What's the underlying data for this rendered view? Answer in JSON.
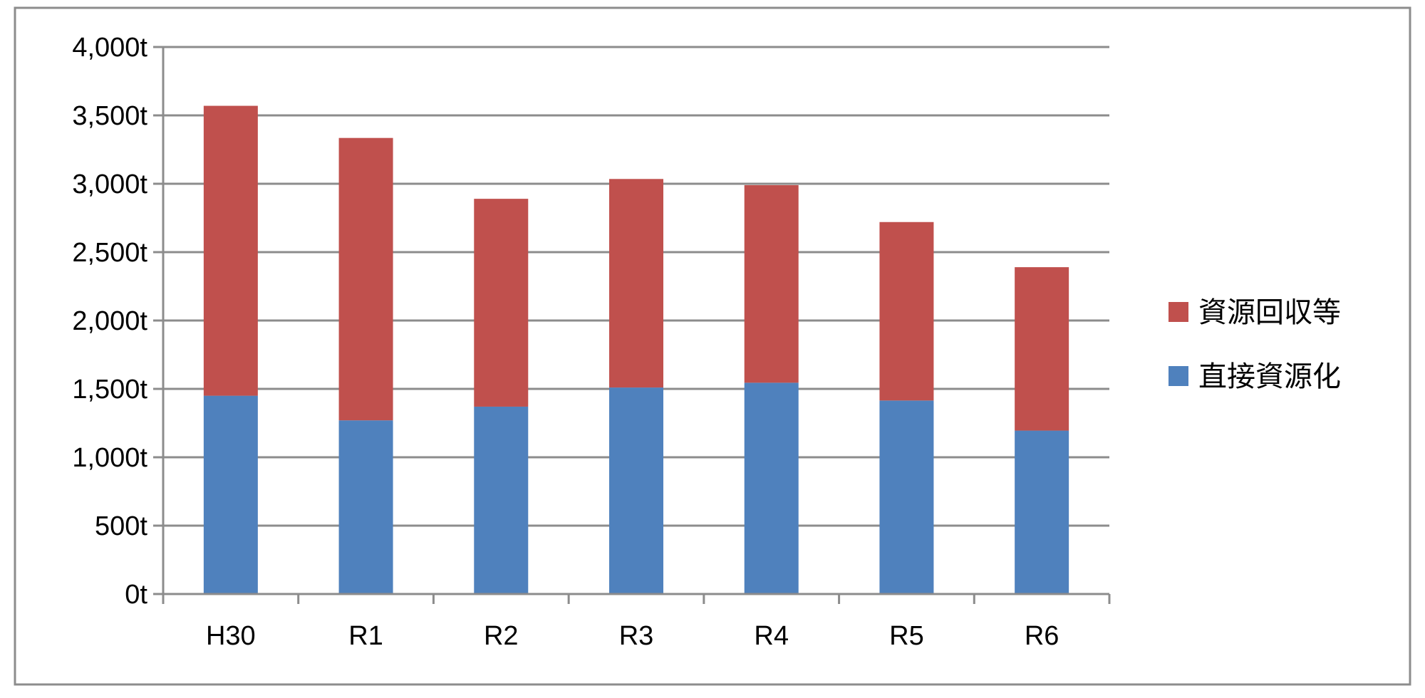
{
  "chart_data": {
    "type": "bar",
    "stacked": true,
    "categories": [
      "H30",
      "R1",
      "R2",
      "R3",
      "R4",
      "R5",
      "R6"
    ],
    "series": [
      {
        "name": "直接資源化",
        "color": "#4F81BD",
        "values": [
          1450,
          1270,
          1370,
          1510,
          1545,
          1415,
          1195
        ]
      },
      {
        "name": "資源回収等",
        "color": "#C0504D",
        "values": [
          2120,
          2065,
          1520,
          1525,
          1445,
          1305,
          1195
        ]
      }
    ],
    "ylim": [
      0,
      4000
    ],
    "yticks": [
      0,
      500,
      1000,
      1500,
      2000,
      2500,
      3000,
      3500,
      4000
    ],
    "ytick_labels": [
      "0t",
      "500t",
      "1,000t",
      "1,500t",
      "2,000t",
      "2,500t",
      "3,000t",
      "3,500t",
      "4,000t"
    ],
    "grid": true,
    "legend": {
      "position": "right",
      "order": [
        "資源回収等",
        "直接資源化"
      ]
    },
    "title": "",
    "xlabel": "",
    "ylabel": ""
  }
}
